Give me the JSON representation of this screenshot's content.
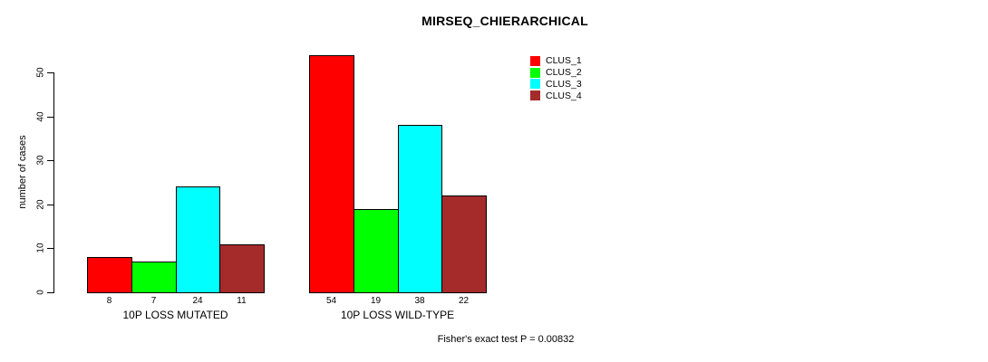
{
  "chart_data": {
    "type": "bar",
    "title": "MIRSEQ_CHIERARCHICAL",
    "ylabel": "number of cases",
    "xlabel": "",
    "ylim": [
      0,
      50
    ],
    "yticks": [
      0,
      10,
      20,
      30,
      40,
      50
    ],
    "categories": [
      "10P LOSS MUTATED",
      "10P LOSS WILD-TYPE"
    ],
    "series": [
      {
        "name": "CLUS_1",
        "color": "#FF0000",
        "values": [
          8,
          54
        ]
      },
      {
        "name": "CLUS_2",
        "color": "#00FF00",
        "values": [
          7,
          19
        ]
      },
      {
        "name": "CLUS_3",
        "color": "#00FFFF",
        "values": [
          24,
          38
        ]
      },
      {
        "name": "CLUS_4",
        "color": "#A52A2A",
        "values": [
          11,
          22
        ]
      }
    ],
    "bar_value_labels": true,
    "legend_position": "top-right",
    "grid": false,
    "axis_color": "#000000",
    "bar_border_color": "#000000"
  },
  "footer": {
    "note": "Fisher's exact test P = 0.00832"
  }
}
